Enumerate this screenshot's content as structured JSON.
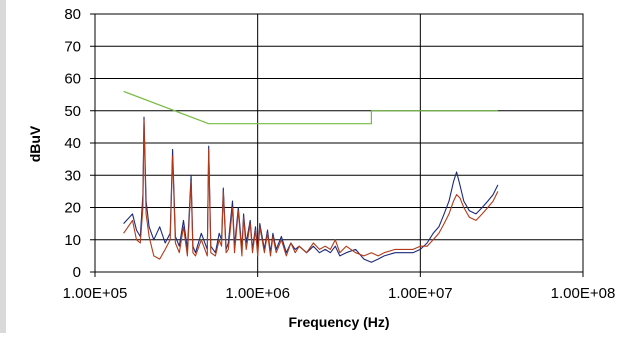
{
  "chart_data": {
    "type": "line",
    "title": "",
    "xlabel": "Frequency (Hz)",
    "ylabel": "dBuV",
    "x_scale": "log",
    "xlim": [
      100000,
      100000000
    ],
    "ylim": [
      0,
      80
    ],
    "x_tick_labels": [
      "1.00E+05",
      "1.00E+06",
      "1.00E+07",
      "1.00E+08"
    ],
    "y_tick_labels": [
      "0",
      "10",
      "20",
      "30",
      "40",
      "50",
      "60",
      "70",
      "80"
    ],
    "grid": true,
    "legend": "none",
    "series": [
      {
        "color": "#77bb44",
        "x": [
          150000,
          500000,
          5000000,
          5000000,
          30000000
        ],
        "y": [
          56,
          46,
          46,
          50,
          50
        ]
      },
      {
        "color": "#1c2a7a",
        "x": [
          150000,
          170000,
          180000,
          190000,
          197000,
          200000,
          206000,
          215000,
          230000,
          250000,
          270000,
          290000,
          300000,
          312000,
          330000,
          350000,
          370000,
          390000,
          400000,
          415000,
          450000,
          490000,
          500000,
          515000,
          550000,
          580000,
          600000,
          615000,
          640000,
          660000,
          700000,
          720000,
          760000,
          800000,
          820000,
          850000,
          900000,
          930000,
          970000,
          1000000,
          1030000,
          1100000,
          1150000,
          1200000,
          1240000,
          1300000,
          1400000,
          1500000,
          1600000,
          1700000,
          1800000,
          2000000,
          2200000,
          2400000,
          2600000,
          2800000,
          3000000,
          3200000,
          3500000,
          4000000,
          4500000,
          5000000,
          5500000,
          6000000,
          7000000,
          8000000,
          9000000,
          10000000,
          11000000,
          12000000,
          13000000,
          14000000,
          15000000,
          16000000,
          16700000,
          17500000,
          18500000,
          20000000,
          22000000,
          24000000,
          26000000,
          28000000,
          30000000
        ],
        "y": [
          15,
          18,
          13,
          11,
          24,
          48,
          22,
          14,
          10,
          14,
          9,
          12,
          38,
          11,
          8,
          16,
          7,
          30,
          8,
          6,
          12,
          7,
          39,
          8,
          6,
          12,
          10,
          26,
          7,
          9,
          22,
          8,
          20,
          7,
          18,
          9,
          16,
          7,
          14,
          6,
          15,
          7,
          13,
          6,
          12,
          7,
          11,
          6,
          9,
          7,
          8,
          6,
          8,
          6,
          7,
          6,
          8,
          5,
          6,
          7,
          4,
          3,
          4,
          5,
          6,
          6,
          6,
          7,
          9,
          12,
          14,
          18,
          22,
          28,
          31,
          27,
          22,
          19,
          18,
          20,
          22,
          24,
          27
        ]
      },
      {
        "color": "#b23a1a",
        "x": [
          150000,
          170000,
          180000,
          190000,
          197000,
          200000,
          206000,
          215000,
          230000,
          250000,
          270000,
          290000,
          300000,
          312000,
          330000,
          350000,
          370000,
          390000,
          400000,
          415000,
          450000,
          490000,
          500000,
          515000,
          550000,
          580000,
          600000,
          615000,
          640000,
          660000,
          700000,
          720000,
          760000,
          800000,
          820000,
          850000,
          900000,
          930000,
          970000,
          1000000,
          1030000,
          1100000,
          1150000,
          1200000,
          1240000,
          1300000,
          1400000,
          1500000,
          1600000,
          1700000,
          1800000,
          2000000,
          2200000,
          2400000,
          2600000,
          2800000,
          3000000,
          3200000,
          3500000,
          4000000,
          4500000,
          5000000,
          5500000,
          6000000,
          7000000,
          8000000,
          9000000,
          10000000,
          11000000,
          12000000,
          13000000,
          14000000,
          15000000,
          16000000,
          16700000,
          17500000,
          18500000,
          20000000,
          22000000,
          24000000,
          26000000,
          28000000,
          30000000
        ],
        "y": [
          12,
          16,
          10,
          9,
          20,
          47,
          18,
          11,
          5,
          4,
          7,
          10,
          36,
          9,
          6,
          14,
          5,
          28,
          6,
          5,
          10,
          5,
          38,
          6,
          5,
          10,
          8,
          25,
          6,
          7,
          20,
          6,
          19,
          5,
          17,
          7,
          15,
          6,
          13,
          5,
          14,
          6,
          12,
          5,
          11,
          6,
          10,
          5,
          9,
          6,
          8,
          6,
          9,
          7,
          8,
          7,
          10,
          6,
          8,
          6,
          5,
          6,
          5,
          6,
          7,
          7,
          7,
          8,
          8,
          10,
          12,
          15,
          18,
          22,
          24,
          23,
          20,
          17,
          16,
          18,
          20,
          22,
          25
        ]
      }
    ]
  }
}
